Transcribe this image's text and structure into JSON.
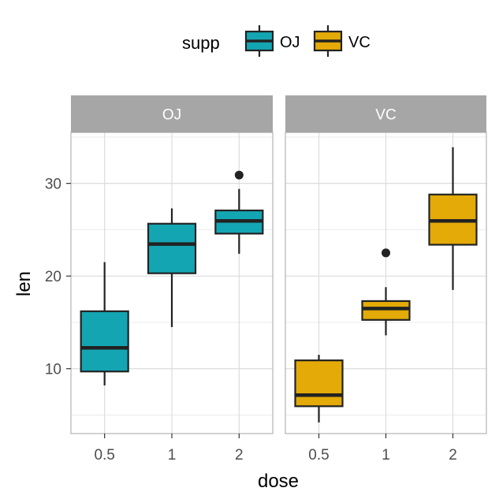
{
  "chart_data": {
    "type": "box",
    "xlabel": "dose",
    "ylabel": "len",
    "ylim": [
      3.0,
      35.5
    ],
    "yticks": [
      10,
      20,
      30
    ],
    "grid": true,
    "legend": {
      "title": "supp",
      "position": "top",
      "entries": [
        {
          "label": "OJ",
          "color": "#14a5b3"
        },
        {
          "label": "VC",
          "color": "#e3aa08"
        }
      ]
    },
    "categories": [
      "0.5",
      "1",
      "2"
    ],
    "panels": [
      {
        "strip": "OJ",
        "color": "#14a5b3",
        "boxes": [
          {
            "dose": "0.5",
            "min": 8.2,
            "q1": 9.7,
            "median": 12.25,
            "q3": 16.2,
            "max": 21.5,
            "outliers": []
          },
          {
            "dose": "1",
            "min": 14.5,
            "q1": 20.3,
            "median": 23.45,
            "q3": 25.65,
            "max": 27.3,
            "outliers": []
          },
          {
            "dose": "2",
            "min": 22.4,
            "q1": 24.58,
            "median": 25.95,
            "q3": 27.08,
            "max": 29.4,
            "outliers": [
              30.9
            ]
          }
        ]
      },
      {
        "strip": "VC",
        "color": "#e3aa08",
        "boxes": [
          {
            "dose": "0.5",
            "min": 4.2,
            "q1": 5.95,
            "median": 7.15,
            "q3": 10.9,
            "max": 11.5,
            "outliers": []
          },
          {
            "dose": "1",
            "min": 13.6,
            "q1": 15.27,
            "median": 16.5,
            "q3": 17.3,
            "max": 18.8,
            "outliers": [
              22.5
            ]
          },
          {
            "dose": "2",
            "min": 18.5,
            "q1": 23.38,
            "median": 25.95,
            "q3": 28.8,
            "max": 33.9,
            "outliers": []
          }
        ]
      }
    ]
  }
}
